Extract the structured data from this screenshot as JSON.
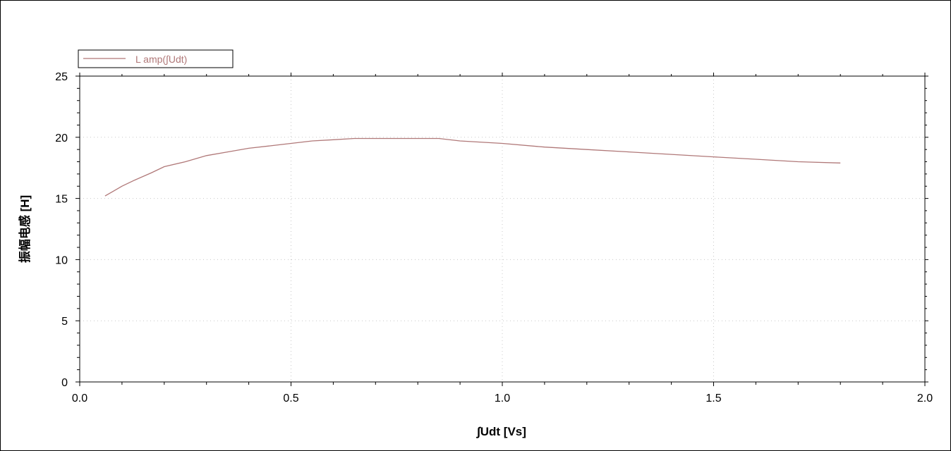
{
  "chart_data": {
    "type": "line",
    "xlabel": "∫Udt [Vs]",
    "ylabel": "振幅电感 [H]",
    "xlim": [
      0.0,
      2.0
    ],
    "ylim": [
      0,
      25
    ],
    "x_ticks": [
      "0.0",
      "0.5",
      "1.0",
      "1.5",
      "2.0"
    ],
    "y_ticks": [
      "0",
      "5",
      "10",
      "15",
      "20",
      "25"
    ],
    "grid": true,
    "legend_position": "top-left",
    "series": [
      {
        "name": "L amp(∫Udt)",
        "color": "#b07878",
        "x": [
          0.06,
          0.08,
          0.1,
          0.13,
          0.17,
          0.2,
          0.25,
          0.3,
          0.35,
          0.4,
          0.45,
          0.5,
          0.55,
          0.6,
          0.65,
          0.7,
          0.75,
          0.8,
          0.85,
          0.9,
          1.0,
          1.1,
          1.2,
          1.3,
          1.4,
          1.5,
          1.6,
          1.7,
          1.8
        ],
        "y": [
          15.2,
          15.6,
          16.0,
          16.5,
          17.1,
          17.6,
          18.0,
          18.5,
          18.8,
          19.1,
          19.3,
          19.5,
          19.7,
          19.8,
          19.9,
          19.9,
          19.9,
          19.9,
          19.9,
          19.7,
          19.5,
          19.2,
          19.0,
          18.8,
          18.6,
          18.4,
          18.2,
          18.0,
          17.9
        ]
      }
    ]
  }
}
